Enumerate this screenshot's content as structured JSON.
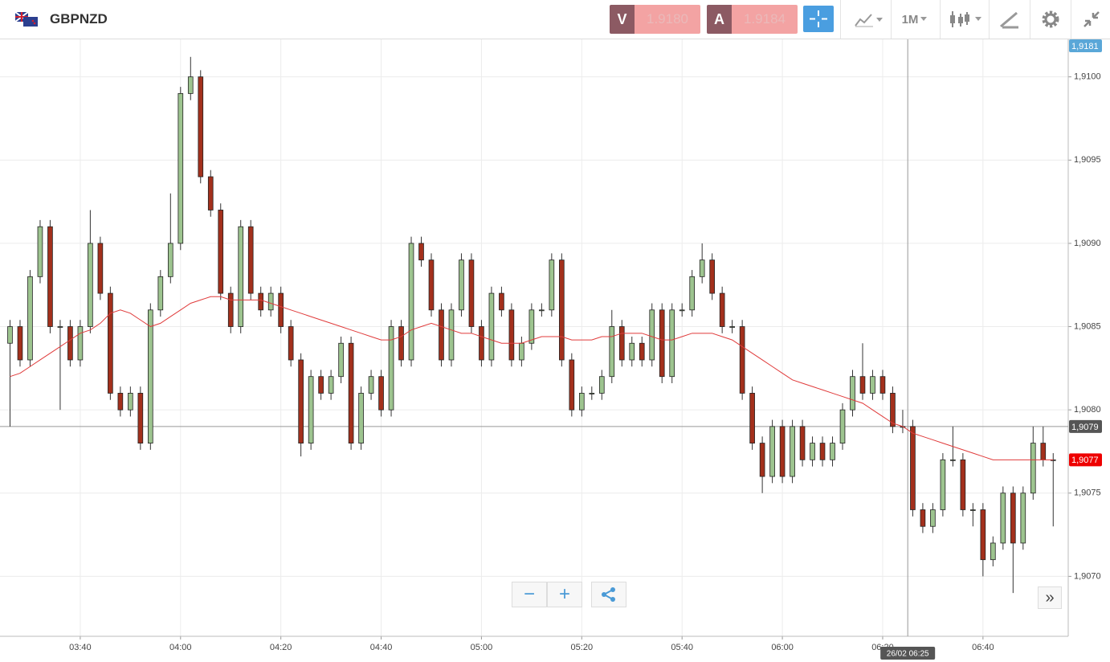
{
  "toolbar": {
    "symbol": "GBPNZD",
    "sell_label": "V",
    "sell_price": "1.9180",
    "buy_label": "A",
    "buy_price": "1.9184",
    "timeframe": "1M"
  },
  "chart_data": {
    "type": "candlestick",
    "x": [
      "03:26",
      "03:28",
      "03:30",
      "03:32",
      "03:34",
      "03:36",
      "03:38",
      "03:40",
      "03:42",
      "03:44",
      "03:46",
      "03:48",
      "03:50",
      "03:52",
      "03:54",
      "03:56",
      "03:58",
      "04:00",
      "04:02",
      "04:04",
      "04:06",
      "04:08",
      "04:10",
      "04:12",
      "04:14",
      "04:16",
      "04:18",
      "04:20",
      "04:22",
      "04:24",
      "04:26",
      "04:28",
      "04:30",
      "04:32",
      "04:34",
      "04:36",
      "04:38",
      "04:40",
      "04:42",
      "04:44",
      "04:46",
      "04:48",
      "04:50",
      "04:52",
      "04:54",
      "04:56",
      "04:58",
      "05:00",
      "05:02",
      "05:04",
      "05:06",
      "05:08",
      "05:10",
      "05:12",
      "05:14",
      "05:16",
      "05:18",
      "05:20",
      "05:22",
      "05:24",
      "05:26",
      "05:28",
      "05:30",
      "05:32",
      "05:34",
      "05:36",
      "05:38",
      "05:40",
      "05:42",
      "05:44",
      "05:46",
      "05:48",
      "05:50",
      "05:52",
      "05:54",
      "05:56",
      "05:58",
      "06:00",
      "06:02",
      "06:04",
      "06:06",
      "06:08",
      "06:10",
      "06:12",
      "06:14",
      "06:16",
      "06:18",
      "06:20",
      "06:22",
      "06:24",
      "06:26",
      "06:28",
      "06:30",
      "06:32",
      "06:34",
      "06:36",
      "06:38",
      "06:40",
      "06:42",
      "06:44",
      "06:46",
      "06:48",
      "06:50",
      "06:52",
      "06:54"
    ],
    "open": [
      1.9084,
      1.9085,
      1.9083,
      1.9088,
      1.9091,
      1.9085,
      1.9085,
      1.9083,
      1.9085,
      1.909,
      1.9087,
      1.9081,
      1.908,
      1.9081,
      1.9078,
      1.9086,
      1.9088,
      1.909,
      1.9099,
      1.91,
      1.9094,
      1.9092,
      1.9087,
      1.9085,
      1.9091,
      1.9087,
      1.9086,
      1.9087,
      1.9085,
      1.9083,
      1.9078,
      1.9082,
      1.9081,
      1.9082,
      1.9084,
      1.9078,
      1.9081,
      1.9082,
      1.908,
      1.9085,
      1.9083,
      1.909,
      1.9089,
      1.9086,
      1.9083,
      1.9086,
      1.9089,
      1.9085,
      1.9083,
      1.9087,
      1.9086,
      1.9083,
      1.9084,
      1.9086,
      1.9086,
      1.9089,
      1.9083,
      1.908,
      1.9081,
      1.9081,
      1.9082,
      1.9085,
      1.9083,
      1.9084,
      1.9083,
      1.9086,
      1.9082,
      1.9086,
      1.9086,
      1.9088,
      1.9089,
      1.9087,
      1.9085,
      1.9085,
      1.9081,
      1.9078,
      1.9076,
      1.9079,
      1.9076,
      1.9079,
      1.9077,
      1.9078,
      1.9077,
      1.9078,
      1.908,
      1.9082,
      1.9081,
      1.9082,
      1.9081,
      1.9079,
      1.9079,
      1.9074,
      1.9073,
      1.9074,
      1.9077,
      1.9077,
      1.9074,
      1.9074,
      1.9071,
      1.9072,
      1.9075,
      1.9072,
      1.9075,
      1.9078,
      1.9077
    ],
    "high": [
      1.90854,
      1.90854,
      1.90884,
      1.90914,
      1.90914,
      1.90854,
      1.90854,
      1.90854,
      1.9092,
      1.90904,
      1.90874,
      1.90814,
      1.90814,
      1.90814,
      1.90864,
      1.90884,
      1.9093,
      1.90994,
      1.91012,
      1.91004,
      1.90944,
      1.90924,
      1.90874,
      1.90914,
      1.90914,
      1.90874,
      1.90874,
      1.90874,
      1.90854,
      1.90834,
      1.90824,
      1.90824,
      1.90824,
      1.90844,
      1.90844,
      1.90814,
      1.90824,
      1.90824,
      1.90854,
      1.90854,
      1.90904,
      1.90904,
      1.90894,
      1.90864,
      1.90864,
      1.90894,
      1.90894,
      1.90854,
      1.90874,
      1.90874,
      1.90864,
      1.90844,
      1.90864,
      1.90864,
      1.90894,
      1.90894,
      1.90834,
      1.90814,
      1.90814,
      1.90824,
      1.9086,
      1.90854,
      1.90844,
      1.90844,
      1.90864,
      1.90864,
      1.90864,
      1.90864,
      1.90884,
      1.909,
      1.90894,
      1.90874,
      1.90854,
      1.90854,
      1.90814,
      1.90784,
      1.90794,
      1.90794,
      1.90794,
      1.90794,
      1.90784,
      1.90784,
      1.90784,
      1.90804,
      1.90824,
      1.9084,
      1.90824,
      1.90824,
      1.90814,
      1.908,
      1.90794,
      1.90744,
      1.90744,
      1.90774,
      1.9079,
      1.90774,
      1.90744,
      1.90744,
      1.90724,
      1.90754,
      1.90754,
      1.90754,
      1.9079,
      1.9079,
      1.90774
    ],
    "low": [
      1.9079,
      1.90826,
      1.90826,
      1.90876,
      1.90846,
      1.908,
      1.90826,
      1.90826,
      1.90846,
      1.90866,
      1.90806,
      1.90796,
      1.90796,
      1.90776,
      1.90776,
      1.90856,
      1.90876,
      1.90896,
      1.90986,
      1.90936,
      1.90916,
      1.90866,
      1.90846,
      1.90846,
      1.90866,
      1.90856,
      1.90856,
      1.90846,
      1.90826,
      1.90772,
      1.90776,
      1.90806,
      1.90806,
      1.90816,
      1.90776,
      1.90776,
      1.90806,
      1.90796,
      1.90796,
      1.90826,
      1.90826,
      1.90886,
      1.90856,
      1.90826,
      1.90826,
      1.90856,
      1.90846,
      1.90826,
      1.90826,
      1.90856,
      1.90826,
      1.90826,
      1.90836,
      1.90856,
      1.90856,
      1.90826,
      1.90796,
      1.90796,
      1.90806,
      1.90806,
      1.90816,
      1.90826,
      1.90826,
      1.90826,
      1.90826,
      1.90816,
      1.90816,
      1.90856,
      1.90856,
      1.90876,
      1.90866,
      1.90846,
      1.90846,
      1.90806,
      1.90776,
      1.9075,
      1.90756,
      1.90756,
      1.90756,
      1.90766,
      1.90766,
      1.90766,
      1.90766,
      1.90776,
      1.90796,
      1.90806,
      1.90806,
      1.90806,
      1.90786,
      1.90786,
      1.90736,
      1.90726,
      1.90726,
      1.90736,
      1.90766,
      1.90736,
      1.9073,
      1.907,
      1.90706,
      1.90716,
      1.9069,
      1.90716,
      1.90746,
      1.90766,
      1.9073
    ],
    "close": [
      1.9085,
      1.9083,
      1.9088,
      1.9091,
      1.9085,
      1.9085,
      1.9083,
      1.9085,
      1.909,
      1.9087,
      1.9081,
      1.908,
      1.9081,
      1.9078,
      1.9086,
      1.9088,
      1.909,
      1.9099,
      1.91,
      1.9094,
      1.9092,
      1.9087,
      1.9085,
      1.9091,
      1.9087,
      1.9086,
      1.9087,
      1.9085,
      1.9083,
      1.9078,
      1.9082,
      1.9081,
      1.9082,
      1.9084,
      1.9078,
      1.9081,
      1.9082,
      1.908,
      1.9085,
      1.9083,
      1.909,
      1.9089,
      1.9086,
      1.9083,
      1.9086,
      1.9089,
      1.9085,
      1.9083,
      1.9087,
      1.9086,
      1.9083,
      1.9084,
      1.9086,
      1.9086,
      1.9089,
      1.9083,
      1.908,
      1.9081,
      1.9081,
      1.9082,
      1.9085,
      1.9083,
      1.9084,
      1.9083,
      1.9086,
      1.9082,
      1.9086,
      1.9086,
      1.9088,
      1.9089,
      1.9087,
      1.9085,
      1.9085,
      1.9081,
      1.9078,
      1.9076,
      1.9079,
      1.9076,
      1.9079,
      1.9077,
      1.9078,
      1.9077,
      1.9078,
      1.908,
      1.9082,
      1.9081,
      1.9082,
      1.9081,
      1.9079,
      1.9079,
      1.9074,
      1.9073,
      1.9074,
      1.9077,
      1.9077,
      1.9074,
      1.9074,
      1.9071,
      1.9072,
      1.9075,
      1.9072,
      1.9075,
      1.9078,
      1.9077,
      1.9077
    ],
    "up_color": "#9dc48f",
    "down_color": "#a3301c",
    "moving_average": {
      "color": "#e03b3b",
      "values": [
        1.9082,
        1.90822,
        1.90826,
        1.9083,
        1.90834,
        1.90838,
        1.90842,
        1.90846,
        1.90848,
        1.90852,
        1.90858,
        1.9086,
        1.90858,
        1.90854,
        1.9085,
        1.90852,
        1.90856,
        1.9086,
        1.90864,
        1.90866,
        1.90868,
        1.90868,
        1.90866,
        1.90866,
        1.90866,
        1.90866,
        1.90864,
        1.90862,
        1.9086,
        1.90858,
        1.90856,
        1.90854,
        1.90852,
        1.9085,
        1.90848,
        1.90846,
        1.90844,
        1.90842,
        1.90842,
        1.90844,
        1.90848,
        1.9085,
        1.90852,
        1.9085,
        1.90848,
        1.90846,
        1.90846,
        1.90844,
        1.90842,
        1.9084,
        1.9084,
        1.9084,
        1.90842,
        1.90844,
        1.90844,
        1.90844,
        1.90842,
        1.90842,
        1.90842,
        1.90844,
        1.90844,
        1.90846,
        1.90846,
        1.90846,
        1.90844,
        1.90842,
        1.90842,
        1.90844,
        1.90846,
        1.90846,
        1.90846,
        1.90844,
        1.90842,
        1.90838,
        1.90834,
        1.9083,
        1.90826,
        1.90822,
        1.90818,
        1.90816,
        1.90814,
        1.90812,
        1.9081,
        1.90808,
        1.90806,
        1.90804,
        1.908,
        1.90796,
        1.90792,
        1.9079,
        1.90786,
        1.90784,
        1.90782,
        1.9078,
        1.90778,
        1.90776,
        1.90774,
        1.90772,
        1.9077,
        1.9077,
        1.9077,
        1.9077,
        1.9077,
        1.9077,
        1.9077
      ]
    },
    "xlim": [
      "03:24",
      "06:57"
    ],
    "xticks": [
      "03:40",
      "04:00",
      "04:20",
      "04:40",
      "05:00",
      "05:20",
      "05:40",
      "06:00",
      "06:20",
      "06:40"
    ],
    "ylim": [
      1.90664,
      1.91023
    ],
    "yticks": [
      {
        "value": 1.907,
        "label": "1,9070"
      },
      {
        "value": 1.9075,
        "label": "1,9075"
      },
      {
        "value": 1.908,
        "label": "1,9080"
      },
      {
        "value": 1.9085,
        "label": "1,9085"
      },
      {
        "value": 1.909,
        "label": "1,9090"
      },
      {
        "value": 1.9095,
        "label": "1,9095"
      },
      {
        "value": 1.91,
        "label": "1,9100"
      }
    ],
    "grid": true,
    "top_marker": "1,9181",
    "price_markers": [
      {
        "value": 1.9079,
        "label": "1,9079",
        "color": "#555555"
      },
      {
        "value": 1.9077,
        "label": "1,9077",
        "color": "#ee0000"
      }
    ],
    "crosshair": {
      "x": "06:25",
      "label": "26/02 06:25"
    }
  }
}
